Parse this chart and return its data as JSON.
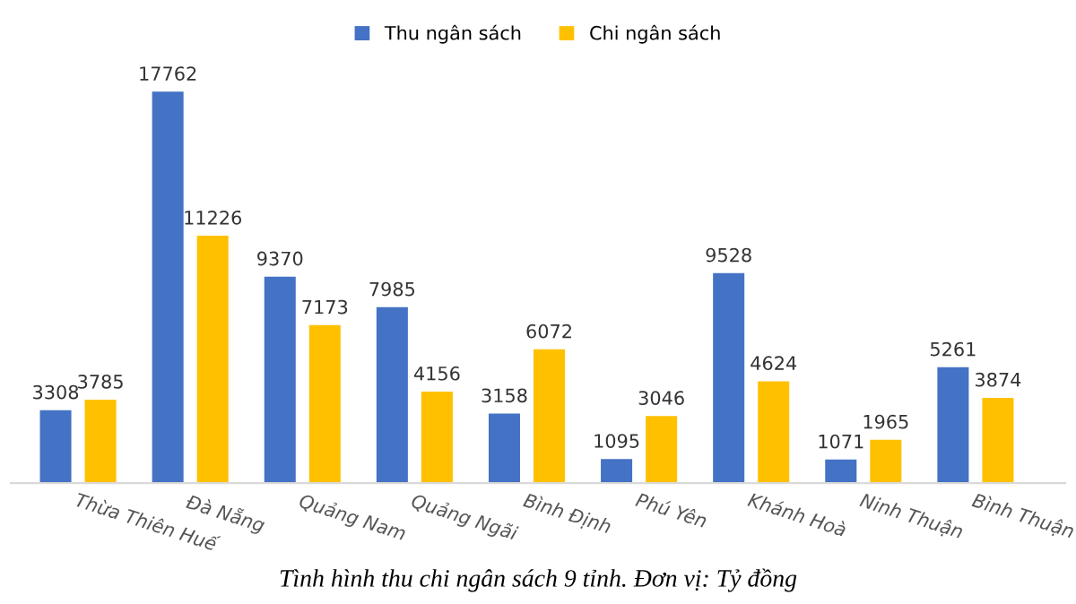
{
  "chart_data": {
    "type": "bar",
    "categories": [
      "Thừa Thiên Huế",
      "Đà Nẵng",
      "Quảng Nam",
      "Quảng Ngãi",
      "Bình Định",
      "Phú Yên",
      "Khánh Hoà",
      "Ninh Thuận",
      "Bình Thuận"
    ],
    "series": [
      {
        "name": "Thu ngân sách",
        "color": "#4472c4",
        "values": [
          3308,
          17762,
          9370,
          7985,
          3158,
          1095,
          9528,
          1071,
          5261
        ]
      },
      {
        "name": "Chi ngân sách",
        "color": "#ffc000",
        "values": [
          3785,
          11226,
          7173,
          4156,
          6072,
          3046,
          4624,
          1965,
          3874
        ]
      }
    ],
    "data_labels": true,
    "legend": "top",
    "grid": false,
    "annotations": [
      "Tình hình thu chi ngân sách 9 tỉnh. Đơn vị: Tỷ đồng"
    ]
  }
}
